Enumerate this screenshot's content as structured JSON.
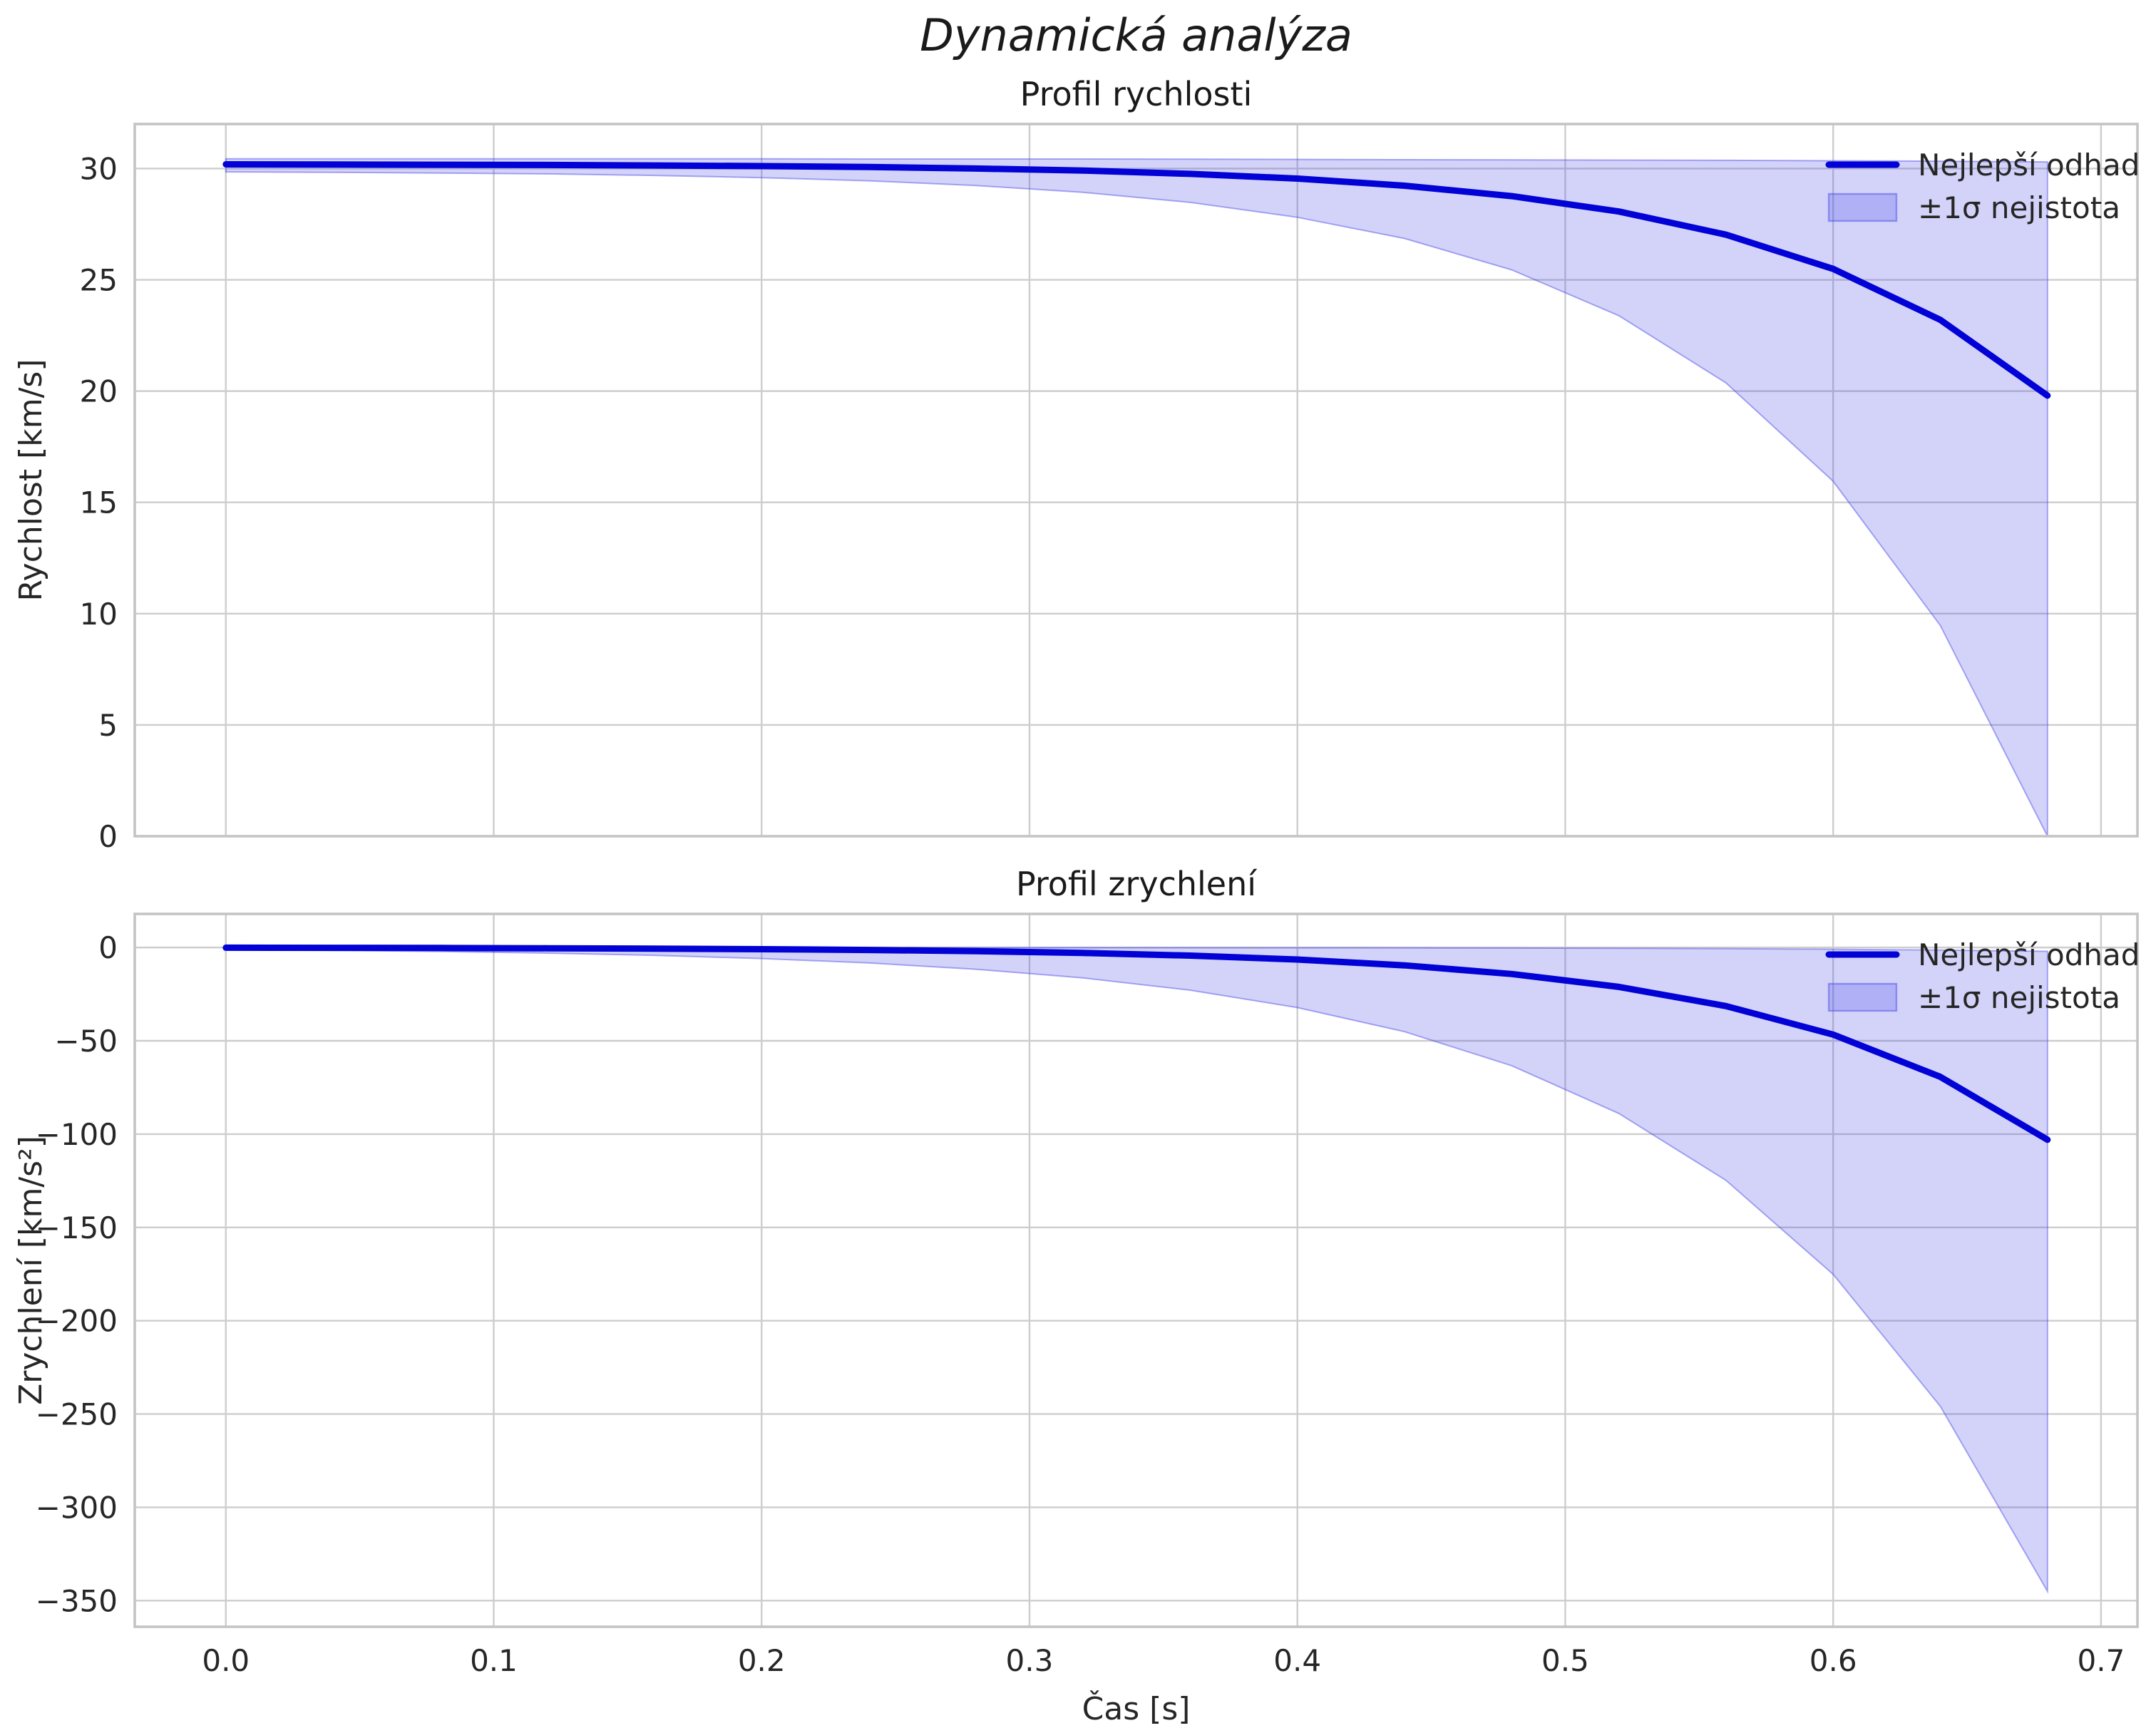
{
  "figure": {
    "suptitle": "Dynamická analýza"
  },
  "colors": {
    "line": "#0202d6",
    "band_fill": "rgba(55,55,230,0.22)",
    "band_edge": "rgba(70,70,230,0.45)",
    "grid": "#cdcdcd",
    "spine": "#c4c4c4",
    "text": "#262626",
    "title": "#1a1a1a"
  },
  "chart_data": [
    {
      "type": "line",
      "title": "Profil rychlosti",
      "xlabel": "",
      "ylabel": "Rychlost [km/s]",
      "legend": {
        "line_label": "Nejlepší odhad",
        "band_label": "±1σ nejistota",
        "position": "upper right",
        "frame": false
      },
      "grid": true,
      "xlim": [
        -0.034,
        0.7136
      ],
      "ylim": [
        0,
        32
      ],
      "xticks": [
        0.0,
        0.1,
        0.2,
        0.3,
        0.4,
        0.5,
        0.6,
        0.7
      ],
      "yticks": [
        0,
        5,
        10,
        15,
        20,
        25,
        30
      ],
      "show_xticklabels": false,
      "x": [
        0.0,
        0.04,
        0.08,
        0.12,
        0.16,
        0.2,
        0.24,
        0.28,
        0.32,
        0.36,
        0.4,
        0.44,
        0.48,
        0.52,
        0.56,
        0.6,
        0.64,
        0.68
      ],
      "best": [
        30.19,
        30.18,
        30.17,
        30.16,
        30.14,
        30.11,
        30.07,
        30.0,
        29.91,
        29.76,
        29.55,
        29.23,
        28.76,
        28.07,
        27.03,
        25.49,
        23.2,
        19.8
      ],
      "upper": [
        30.44,
        30.44,
        30.44,
        30.44,
        30.44,
        30.44,
        30.43,
        30.43,
        30.43,
        30.42,
        30.41,
        30.4,
        30.39,
        30.38,
        30.37,
        30.35,
        30.33,
        30.3
      ],
      "lower": [
        29.85,
        29.83,
        29.8,
        29.76,
        29.69,
        29.59,
        29.45,
        29.24,
        28.93,
        28.48,
        27.81,
        26.86,
        25.45,
        23.39,
        20.37,
        15.95,
        9.47,
        0.0
      ]
    },
    {
      "type": "line",
      "title": "Profil zrychlení",
      "xlabel": "Čas [s]",
      "ylabel": "Zrychlení [km/s²]",
      "legend": {
        "line_label": "Nejlepší odhad",
        "band_label": "±1σ nejistota",
        "position": "upper right",
        "frame": false
      },
      "grid": true,
      "xlim": [
        -0.034,
        0.7136
      ],
      "ylim": [
        -364,
        18
      ],
      "xticks": [
        0.0,
        0.1,
        0.2,
        0.3,
        0.4,
        0.5,
        0.6,
        0.7
      ],
      "yticks": [
        0,
        -50,
        -100,
        -150,
        -200,
        -250,
        -300,
        -350
      ],
      "show_xticklabels": true,
      "x": [
        0.0,
        0.04,
        0.08,
        0.12,
        0.16,
        0.2,
        0.24,
        0.28,
        0.32,
        0.36,
        0.4,
        0.44,
        0.48,
        0.52,
        0.56,
        0.6,
        0.64,
        0.68
      ],
      "best": [
        -0.12,
        -0.18,
        -0.27,
        -0.4,
        -0.6,
        -0.89,
        -1.32,
        -1.96,
        -2.92,
        -4.34,
        -6.45,
        -9.58,
        -14.22,
        -21.13,
        -31.4,
        -46.66,
        -69.32,
        -103.0
      ],
      "upper": [
        -0.01,
        -0.01,
        -0.01,
        -0.01,
        -0.02,
        -0.02,
        -0.03,
        -0.04,
        -0.06,
        -0.09,
        -0.13,
        -0.19,
        -0.28,
        -0.42,
        -0.63,
        -0.93,
        -1.39,
        -2.06
      ],
      "lower": [
        -1.08,
        -1.52,
        -2.13,
        -3.0,
        -4.21,
        -5.9,
        -8.29,
        -11.63,
        -16.31,
        -22.89,
        -32.19,
        -45.12,
        -63.34,
        -88.91,
        -124.79,
        -175.15,
        -245.83,
        -345.0
      ]
    }
  ]
}
